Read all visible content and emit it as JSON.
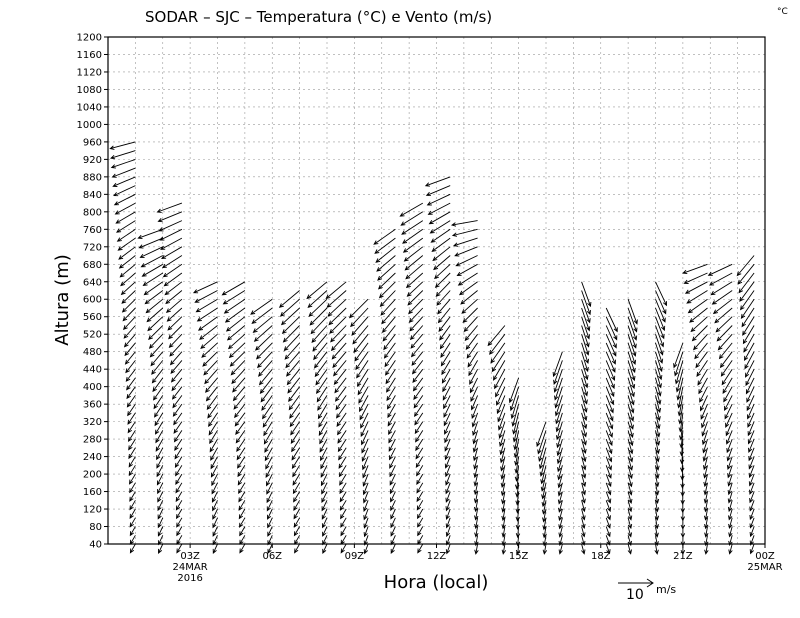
{
  "chart_data": {
    "type": "wind-barb",
    "title": "SODAR – SJC – Temperatura (°C) e Vento (m/s)",
    "unit_corner": "°C",
    "ylabel": "Altura (m)",
    "xlabel": "Hora (local)",
    "ylim": [
      40,
      1200
    ],
    "y_ticks": [
      40,
      80,
      120,
      160,
      200,
      240,
      280,
      320,
      360,
      400,
      440,
      480,
      520,
      560,
      600,
      640,
      680,
      720,
      760,
      800,
      840,
      880,
      920,
      960,
      1000,
      1040,
      1080,
      1120,
      1160,
      1200
    ],
    "xlim_hours": [
      0,
      24
    ],
    "x_ticks": [
      {
        "hour": 3,
        "label": "03Z",
        "sub1": "24MAR",
        "sub2": "2016"
      },
      {
        "hour": 6,
        "label": "06Z",
        "sub1": "",
        "sub2": ""
      },
      {
        "hour": 9,
        "label": "09Z",
        "sub1": "",
        "sub2": ""
      },
      {
        "hour": 12,
        "label": "12Z",
        "sub1": "",
        "sub2": ""
      },
      {
        "hour": 15,
        "label": "15Z",
        "sub1": "",
        "sub2": ""
      },
      {
        "hour": 18,
        "label": "18Z",
        "sub1": "",
        "sub2": ""
      },
      {
        "hour": 21,
        "label": "21Z",
        "sub1": "",
        "sub2": ""
      },
      {
        "hour": 24,
        "label": "00Z",
        "sub1": "25MAR",
        "sub2": ""
      }
    ],
    "legend": {
      "value": "10",
      "unit": "m/s"
    },
    "profiles": [
      {
        "hour": 1.0,
        "top": 960,
        "dir": 210,
        "upper_dir": 255
      },
      {
        "hour": 2.0,
        "top": 760,
        "dir": 205,
        "upper_dir": 250
      },
      {
        "hour": 2.7,
        "top": 820,
        "dir": 210,
        "upper_dir": 250
      },
      {
        "hour": 4.0,
        "top": 640,
        "dir": 205,
        "upper_dir": 245
      },
      {
        "hour": 5.0,
        "top": 640,
        "dir": 210,
        "upper_dir": 240
      },
      {
        "hour": 6.0,
        "top": 600,
        "dir": 205,
        "upper_dir": 235
      },
      {
        "hour": 7.0,
        "top": 620,
        "dir": 210,
        "upper_dir": 230
      },
      {
        "hour": 8.0,
        "top": 640,
        "dir": 205,
        "upper_dir": 230
      },
      {
        "hour": 8.7,
        "top": 640,
        "dir": 210,
        "upper_dir": 230
      },
      {
        "hour": 9.5,
        "top": 600,
        "dir": 200,
        "upper_dir": 225
      },
      {
        "hour": 10.5,
        "top": 760,
        "dir": 205,
        "upper_dir": 235
      },
      {
        "hour": 11.5,
        "top": 820,
        "dir": 210,
        "upper_dir": 240
      },
      {
        "hour": 12.5,
        "top": 880,
        "dir": 200,
        "upper_dir": 250
      },
      {
        "hour": 13.5,
        "top": 780,
        "dir": 190,
        "upper_dir": 260
      },
      {
        "hour": 14.5,
        "top": 540,
        "dir": 190,
        "upper_dir": 220
      },
      {
        "hour": 15.0,
        "top": 420,
        "dir": 185,
        "upper_dir": 200
      },
      {
        "hour": 16.0,
        "top": 320,
        "dir": 190,
        "upper_dir": 200
      },
      {
        "hour": 16.6,
        "top": 480,
        "dir": 195,
        "upper_dir": 200
      },
      {
        "hour": 17.3,
        "top": 640,
        "dir": 165,
        "upper_dir": 160
      },
      {
        "hour": 18.2,
        "top": 580,
        "dir": 160,
        "upper_dir": 155
      },
      {
        "hour": 19.0,
        "top": 600,
        "dir": 165,
        "upper_dir": 160
      },
      {
        "hour": 20.0,
        "top": 640,
        "dir": 170,
        "upper_dir": 155
      },
      {
        "hour": 21.0,
        "top": 500,
        "dir": 180,
        "upper_dir": 200
      },
      {
        "hour": 21.9,
        "top": 680,
        "dir": 190,
        "upper_dir": 250
      },
      {
        "hour": 22.8,
        "top": 680,
        "dir": 195,
        "upper_dir": 245
      },
      {
        "hour": 23.6,
        "top": 700,
        "dir": 200,
        "upper_dir": 220
      }
    ]
  }
}
